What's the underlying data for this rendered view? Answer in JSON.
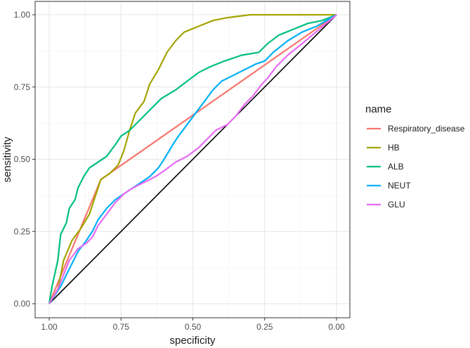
{
  "chart_data": {
    "type": "line",
    "xlabel": "specificity",
    "ylabel": "sensitivity",
    "x_reversed": true,
    "xlim": [
      1.0,
      0.0
    ],
    "ylim": [
      0.0,
      1.0
    ],
    "x_ticks": [
      {
        "value": 1.0,
        "label": "1.00"
      },
      {
        "value": 0.75,
        "label": "0.75"
      },
      {
        "value": 0.5,
        "label": "0.50"
      },
      {
        "value": 0.25,
        "label": "0.25"
      },
      {
        "value": 0.0,
        "label": "0.00"
      }
    ],
    "y_ticks": [
      {
        "value": 0.0,
        "label": "0.00"
      },
      {
        "value": 0.25,
        "label": "0.25"
      },
      {
        "value": 0.5,
        "label": "0.50"
      },
      {
        "value": 0.75,
        "label": "0.75"
      },
      {
        "value": 1.0,
        "label": "1.00"
      }
    ],
    "grid": true,
    "legend_title": "name",
    "legend_position": "right",
    "reference_line": {
      "from": [
        1.0,
        0.0
      ],
      "to": [
        0.0,
        1.0
      ],
      "color": "#000000"
    },
    "series": [
      {
        "name": "Respiratory_disease",
        "color": "#F8766D",
        "points": [
          [
            1.0,
            0.0
          ],
          [
            0.82,
            0.43
          ],
          [
            0.0,
            1.0
          ]
        ]
      },
      {
        "name": "HB",
        "color": "#A3A500",
        "points": [
          [
            1.0,
            0.0
          ],
          [
            0.97,
            0.05
          ],
          [
            0.95,
            0.15
          ],
          [
            0.92,
            0.22
          ],
          [
            0.89,
            0.26
          ],
          [
            0.86,
            0.31
          ],
          [
            0.84,
            0.37
          ],
          [
            0.82,
            0.43
          ],
          [
            0.79,
            0.45
          ],
          [
            0.76,
            0.48
          ],
          [
            0.74,
            0.53
          ],
          [
            0.72,
            0.6
          ],
          [
            0.7,
            0.66
          ],
          [
            0.67,
            0.7
          ],
          [
            0.65,
            0.76
          ],
          [
            0.62,
            0.81
          ],
          [
            0.59,
            0.87
          ],
          [
            0.56,
            0.91
          ],
          [
            0.53,
            0.94
          ],
          [
            0.48,
            0.96
          ],
          [
            0.43,
            0.98
          ],
          [
            0.38,
            0.99
          ],
          [
            0.3,
            1.0
          ],
          [
            0.2,
            1.0
          ],
          [
            0.0,
            1.0
          ]
        ]
      },
      {
        "name": "ALB",
        "color": "#00BF7D",
        "points": [
          [
            1.0,
            0.0
          ],
          [
            0.99,
            0.06
          ],
          [
            0.97,
            0.15
          ],
          [
            0.96,
            0.24
          ],
          [
            0.94,
            0.28
          ],
          [
            0.93,
            0.33
          ],
          [
            0.91,
            0.36
          ],
          [
            0.9,
            0.4
          ],
          [
            0.88,
            0.44
          ],
          [
            0.86,
            0.47
          ],
          [
            0.83,
            0.49
          ],
          [
            0.8,
            0.51
          ],
          [
            0.77,
            0.55
          ],
          [
            0.75,
            0.58
          ],
          [
            0.72,
            0.6
          ],
          [
            0.69,
            0.63
          ],
          [
            0.65,
            0.67
          ],
          [
            0.61,
            0.71
          ],
          [
            0.56,
            0.74
          ],
          [
            0.52,
            0.77
          ],
          [
            0.48,
            0.8
          ],
          [
            0.44,
            0.82
          ],
          [
            0.39,
            0.84
          ],
          [
            0.33,
            0.86
          ],
          [
            0.27,
            0.87
          ],
          [
            0.24,
            0.9
          ],
          [
            0.2,
            0.93
          ],
          [
            0.15,
            0.95
          ],
          [
            0.1,
            0.97
          ],
          [
            0.05,
            0.98
          ],
          [
            0.0,
            1.0
          ]
        ]
      },
      {
        "name": "NEUT",
        "color": "#00B0F6",
        "points": [
          [
            1.0,
            0.0
          ],
          [
            0.98,
            0.03
          ],
          [
            0.96,
            0.06
          ],
          [
            0.94,
            0.1
          ],
          [
            0.92,
            0.14
          ],
          [
            0.9,
            0.18
          ],
          [
            0.87,
            0.22
          ],
          [
            0.85,
            0.25
          ],
          [
            0.83,
            0.29
          ],
          [
            0.8,
            0.33
          ],
          [
            0.77,
            0.36
          ],
          [
            0.74,
            0.38
          ],
          [
            0.71,
            0.4
          ],
          [
            0.68,
            0.42
          ],
          [
            0.65,
            0.44
          ],
          [
            0.62,
            0.47
          ],
          [
            0.6,
            0.5
          ],
          [
            0.57,
            0.55
          ],
          [
            0.55,
            0.58
          ],
          [
            0.52,
            0.62
          ],
          [
            0.49,
            0.66
          ],
          [
            0.46,
            0.7
          ],
          [
            0.43,
            0.74
          ],
          [
            0.4,
            0.77
          ],
          [
            0.36,
            0.79
          ],
          [
            0.32,
            0.81
          ],
          [
            0.28,
            0.83
          ],
          [
            0.25,
            0.84
          ],
          [
            0.22,
            0.87
          ],
          [
            0.17,
            0.91
          ],
          [
            0.12,
            0.94
          ],
          [
            0.07,
            0.96
          ],
          [
            0.0,
            1.0
          ]
        ]
      },
      {
        "name": "GLU",
        "color": "#E76BF3",
        "points": [
          [
            1.0,
            0.0
          ],
          [
            0.97,
            0.05
          ],
          [
            0.95,
            0.1
          ],
          [
            0.93,
            0.15
          ],
          [
            0.9,
            0.19
          ],
          [
            0.87,
            0.21
          ],
          [
            0.85,
            0.23
          ],
          [
            0.83,
            0.27
          ],
          [
            0.8,
            0.31
          ],
          [
            0.77,
            0.35
          ],
          [
            0.74,
            0.38
          ],
          [
            0.71,
            0.4
          ],
          [
            0.67,
            0.42
          ],
          [
            0.63,
            0.44
          ],
          [
            0.6,
            0.46
          ],
          [
            0.56,
            0.49
          ],
          [
            0.52,
            0.51
          ],
          [
            0.48,
            0.54
          ],
          [
            0.45,
            0.57
          ],
          [
            0.42,
            0.6
          ],
          [
            0.38,
            0.62
          ],
          [
            0.35,
            0.65
          ],
          [
            0.32,
            0.69
          ],
          [
            0.29,
            0.72
          ],
          [
            0.26,
            0.76
          ],
          [
            0.24,
            0.78
          ],
          [
            0.21,
            0.82
          ],
          [
            0.17,
            0.86
          ],
          [
            0.12,
            0.9
          ],
          [
            0.06,
            0.95
          ],
          [
            0.0,
            1.0
          ]
        ]
      }
    ]
  }
}
